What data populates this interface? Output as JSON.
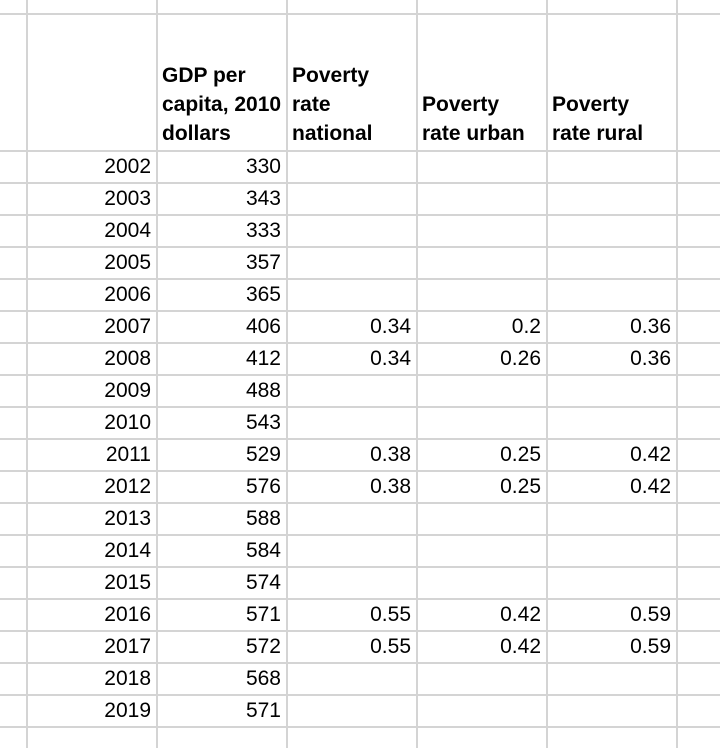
{
  "app": {
    "type": "spreadsheet-grid"
  },
  "colors": {
    "gridline": "#d4d4d4",
    "cell_background": "#ffffff",
    "text": "#000000"
  },
  "grid": {
    "headers": {
      "year": "",
      "gdp": "GDP per\ncapita, 2010\ndollars",
      "national": "Poverty\nrate\nnational",
      "urban": "Poverty\nrate urban",
      "rural": "Poverty\nrate rural"
    },
    "rows": [
      {
        "year": "2002",
        "gdp": "330",
        "national": "",
        "urban": "",
        "rural": ""
      },
      {
        "year": "2003",
        "gdp": "343",
        "national": "",
        "urban": "",
        "rural": ""
      },
      {
        "year": "2004",
        "gdp": "333",
        "national": "",
        "urban": "",
        "rural": ""
      },
      {
        "year": "2005",
        "gdp": "357",
        "national": "",
        "urban": "",
        "rural": ""
      },
      {
        "year": "2006",
        "gdp": "365",
        "national": "",
        "urban": "",
        "rural": ""
      },
      {
        "year": "2007",
        "gdp": "406",
        "national": "0.34",
        "urban": "0.2",
        "rural": "0.36"
      },
      {
        "year": "2008",
        "gdp": "412",
        "national": "0.34",
        "urban": "0.26",
        "rural": "0.36"
      },
      {
        "year": "2009",
        "gdp": "488",
        "national": "",
        "urban": "",
        "rural": ""
      },
      {
        "year": "2010",
        "gdp": "543",
        "national": "",
        "urban": "",
        "rural": ""
      },
      {
        "year": "2011",
        "gdp": "529",
        "national": "0.38",
        "urban": "0.25",
        "rural": "0.42"
      },
      {
        "year": "2012",
        "gdp": "576",
        "national": "0.38",
        "urban": "0.25",
        "rural": "0.42"
      },
      {
        "year": "2013",
        "gdp": "588",
        "national": "",
        "urban": "",
        "rural": ""
      },
      {
        "year": "2014",
        "gdp": "584",
        "national": "",
        "urban": "",
        "rural": ""
      },
      {
        "year": "2015",
        "gdp": "574",
        "national": "",
        "urban": "",
        "rural": ""
      },
      {
        "year": "2016",
        "gdp": "571",
        "national": "0.55",
        "urban": "0.42",
        "rural": "0.59"
      },
      {
        "year": "2017",
        "gdp": "572",
        "national": "0.55",
        "urban": "0.42",
        "rural": "0.59"
      },
      {
        "year": "2018",
        "gdp": "568",
        "national": "",
        "urban": "",
        "rural": ""
      },
      {
        "year": "2019",
        "gdp": "571",
        "national": "",
        "urban": "",
        "rural": ""
      }
    ]
  }
}
